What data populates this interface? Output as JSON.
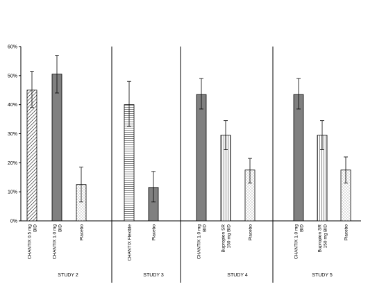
{
  "chart_data": {
    "type": "bar",
    "ylim": [
      0,
      60
    ],
    "y_ticks": [
      "0%",
      "10%",
      "20%",
      "30%",
      "40%",
      "50%",
      "60%"
    ],
    "grid": false,
    "legend": "none",
    "groups": [
      {
        "label": "STUDY 2",
        "bars": [
          {
            "label": [
              "CHANTIX 0.5 mg",
              "BID"
            ],
            "value": 45,
            "err_low": 39,
            "err_high": 51.5,
            "fill": "diagonal-hatch"
          },
          {
            "label": [
              "CHANTIX 1.0 mg",
              "BID"
            ],
            "value": 50.5,
            "err_low": 44,
            "err_high": 57,
            "fill": "solid-gray"
          },
          {
            "label": [
              "Placebo"
            ],
            "value": 12.5,
            "err_low": 6.5,
            "err_high": 18.5,
            "fill": "dots"
          }
        ]
      },
      {
        "label": "STUDY 3",
        "bars": [
          {
            "label": [
              "CHANTIX Flexible"
            ],
            "value": 40,
            "err_low": 32.5,
            "err_high": 48,
            "fill": "horizontal-lines"
          },
          {
            "label": [
              "Placebo"
            ],
            "value": 11.5,
            "err_low": 6.5,
            "err_high": 17,
            "fill": "solid-gray"
          }
        ]
      },
      {
        "label": "STUDY 4",
        "bars": [
          {
            "label": [
              "CHANTIX 1.0 mg",
              "BID"
            ],
            "value": 43.5,
            "err_low": 38.5,
            "err_high": 49,
            "fill": "solid-gray"
          },
          {
            "label": [
              "Bupropion SR",
              "150 mg BID"
            ],
            "value": 29.5,
            "err_low": 24.5,
            "err_high": 34.5,
            "fill": "vertical-lines"
          },
          {
            "label": [
              "Placebo"
            ],
            "value": 17.5,
            "err_low": 13,
            "err_high": 21.5,
            "fill": "dots"
          }
        ]
      },
      {
        "label": "STUDY 5",
        "bars": [
          {
            "label": [
              "CHANTIX 1.0 mg",
              "BID"
            ],
            "value": 43.5,
            "err_low": 38.5,
            "err_high": 49,
            "fill": "solid-gray"
          },
          {
            "label": [
              "Bupropion SR",
              "150 mg BID"
            ],
            "value": 29.5,
            "err_low": 24.5,
            "err_high": 34.5,
            "fill": "vertical-lines"
          },
          {
            "label": [
              "Placebo"
            ],
            "value": 17.5,
            "err_low": 13,
            "err_high": 22,
            "fill": "dots"
          }
        ]
      }
    ],
    "colors": {
      "solid_gray": "#808080",
      "axis": "#000000",
      "background": "#ffffff"
    }
  }
}
